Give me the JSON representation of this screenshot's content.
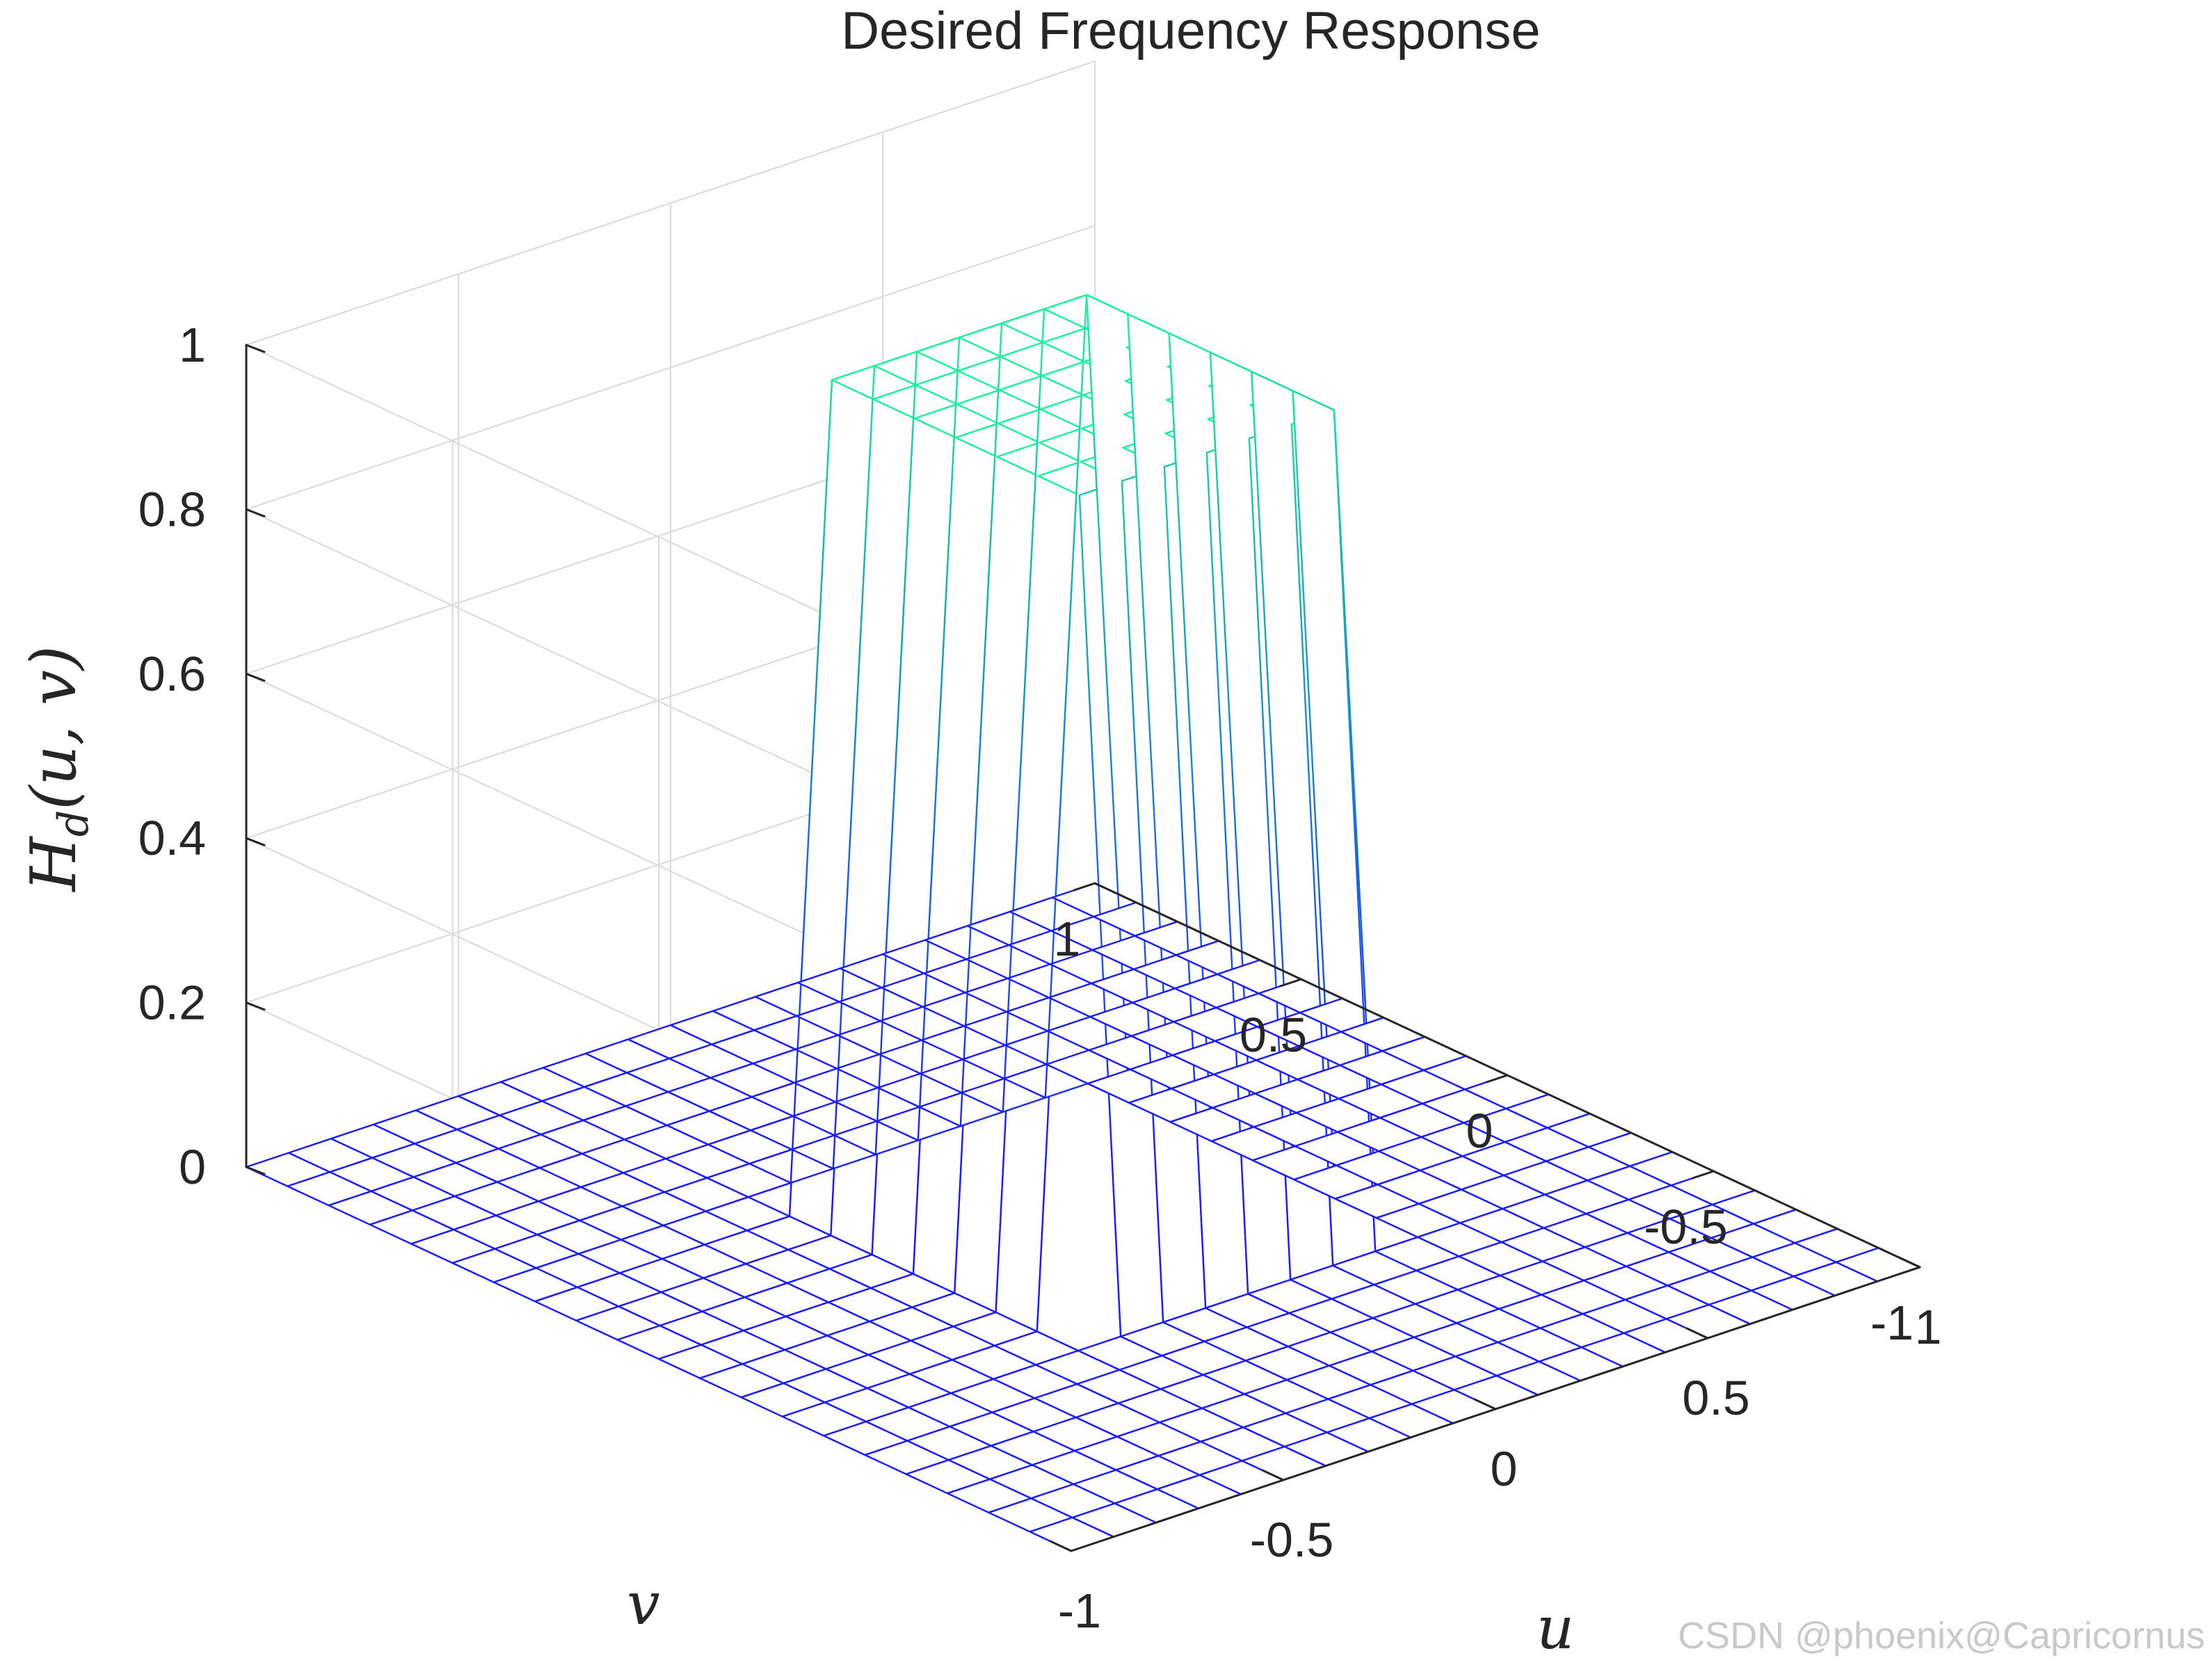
{
  "chart_data": {
    "type": "surface3d",
    "title": "Desired Frequency Response",
    "xlabel": "u",
    "ylabel": "v",
    "zlabel_base": "H",
    "zlabel_sub": "d",
    "zlabel_args": "(u, v)",
    "x_ticks": [
      "-1",
      "-0.5",
      "0",
      "0.5",
      "1"
    ],
    "y_ticks": [
      "-1",
      "-0.5",
      "0",
      "0.5",
      "1"
    ],
    "z_ticks": [
      "0",
      "0.2",
      "0.4",
      "0.6",
      "0.8",
      "1"
    ],
    "xlim": [
      -1,
      1
    ],
    "ylim": [
      -1,
      1
    ],
    "zlim": [
      0,
      1
    ],
    "grid": true,
    "grid_points": 21,
    "passband": {
      "u_range": [
        -0.3,
        0.3
      ],
      "v_range": [
        -0.3,
        0.3
      ],
      "value": 1
    },
    "stopband_value": 0,
    "colormap": {
      "low": "#1a1aff",
      "high": "#14f59a"
    },
    "watermark": "CSDN @phoenix@Capricornus"
  }
}
